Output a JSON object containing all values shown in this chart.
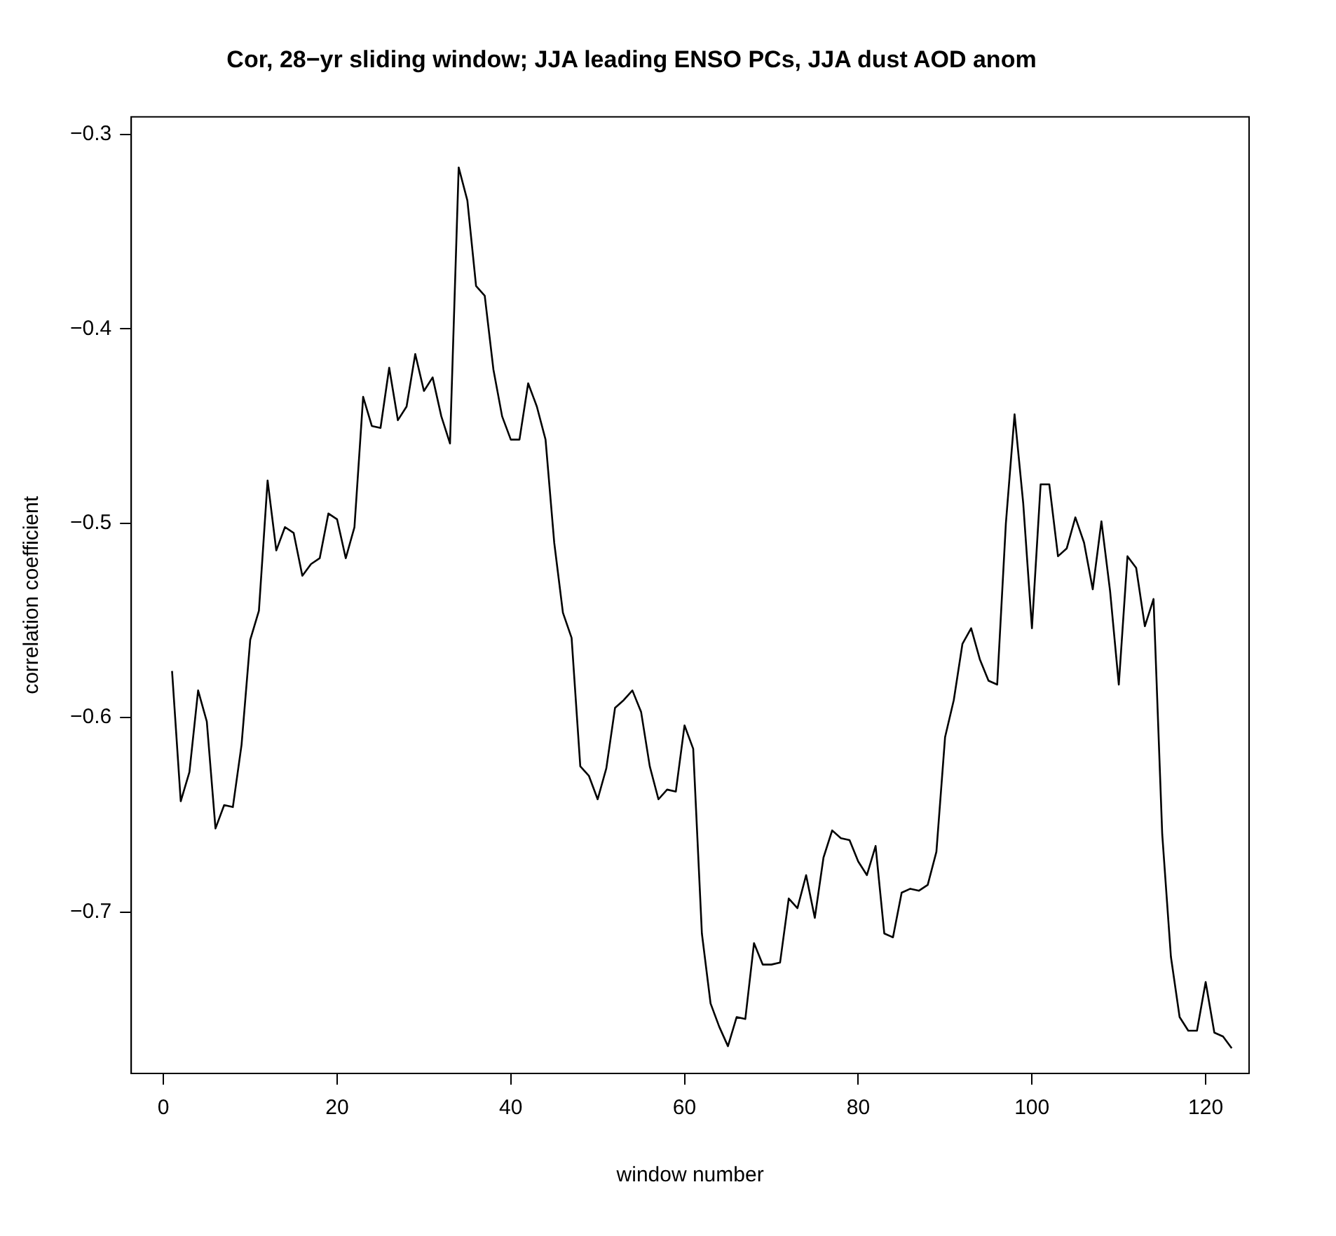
{
  "chart_data": {
    "type": "line",
    "title": "Cor, 28−yr sliding window; JJA leading ENSO PCs, JJA dust AOD anom",
    "xlabel": "window number",
    "ylabel": "correlation coefficient",
    "x": [
      1,
      2,
      3,
      4,
      5,
      6,
      7,
      8,
      9,
      10,
      11,
      12,
      13,
      14,
      15,
      16,
      17,
      18,
      19,
      20,
      21,
      22,
      23,
      24,
      25,
      26,
      27,
      28,
      29,
      30,
      31,
      32,
      33,
      34,
      35,
      36,
      37,
      38,
      39,
      40,
      41,
      42,
      43,
      44,
      45,
      46,
      47,
      48,
      49,
      50,
      51,
      52,
      53,
      54,
      55,
      56,
      57,
      58,
      59,
      60,
      61,
      62,
      63,
      64,
      65,
      66,
      67,
      68,
      69,
      70,
      71,
      72,
      73,
      74,
      75,
      76,
      77,
      78,
      79,
      80,
      81,
      82,
      83,
      84,
      85,
      86,
      87,
      88,
      89,
      90,
      91,
      92,
      93,
      94,
      95,
      96,
      97,
      98,
      99,
      100,
      101,
      102,
      103,
      104,
      105,
      106,
      107,
      108,
      109,
      110,
      111,
      112,
      113,
      114,
      115,
      116,
      117,
      118,
      119,
      120,
      121,
      122,
      123
    ],
    "series": [
      {
        "color": "#000000",
        "values": [
          -0.576,
          -0.643,
          -0.628,
          -0.586,
          -0.602,
          -0.657,
          -0.645,
          -0.646,
          -0.614,
          -0.56,
          -0.545,
          -0.478,
          -0.514,
          -0.502,
          -0.505,
          -0.527,
          -0.521,
          -0.518,
          -0.495,
          -0.498,
          -0.518,
          -0.502,
          -0.435,
          -0.45,
          -0.451,
          -0.42,
          -0.447,
          -0.44,
          -0.413,
          -0.432,
          -0.425,
          -0.445,
          -0.459,
          -0.317,
          -0.334,
          -0.378,
          -0.383,
          -0.421,
          -0.445,
          -0.457,
          -0.457,
          -0.428,
          -0.44,
          -0.457,
          -0.51,
          -0.546,
          -0.559,
          -0.625,
          -0.63,
          -0.642,
          -0.626,
          -0.595,
          -0.591,
          -0.586,
          -0.597,
          -0.625,
          -0.642,
          -0.637,
          -0.638,
          -0.604,
          -0.616,
          -0.711,
          -0.747,
          -0.759,
          -0.769,
          -0.754,
          -0.755,
          -0.716,
          -0.727,
          -0.727,
          -0.726,
          -0.693,
          -0.698,
          -0.681,
          -0.703,
          -0.672,
          -0.658,
          -0.662,
          -0.663,
          -0.674,
          -0.681,
          -0.666,
          -0.711,
          -0.713,
          -0.69,
          -0.688,
          -0.689,
          -0.686,
          -0.669,
          -0.61,
          -0.591,
          -0.562,
          -0.554,
          -0.57,
          -0.581,
          -0.583,
          -0.5,
          -0.444,
          -0.49,
          -0.554,
          -0.48,
          -0.48,
          -0.517,
          -0.513,
          -0.497,
          -0.51,
          -0.534,
          -0.499,
          -0.535,
          -0.583,
          -0.517,
          -0.523,
          -0.553,
          -0.539,
          -0.66,
          -0.723,
          -0.754,
          -0.761,
          -0.761,
          -0.736,
          -0.762,
          -0.764,
          -0.77
        ]
      }
    ],
    "xlim": [
      -3.7,
      125
    ],
    "xticks": [
      0,
      20,
      40,
      60,
      80,
      100,
      120
    ],
    "ylim": [
      -0.783,
      -0.291
    ],
    "yticks": [
      -0.7,
      -0.6,
      -0.5,
      -0.4,
      -0.3
    ],
    "grid": false,
    "legend": false,
    "marker": "none",
    "line_style": "solid"
  }
}
